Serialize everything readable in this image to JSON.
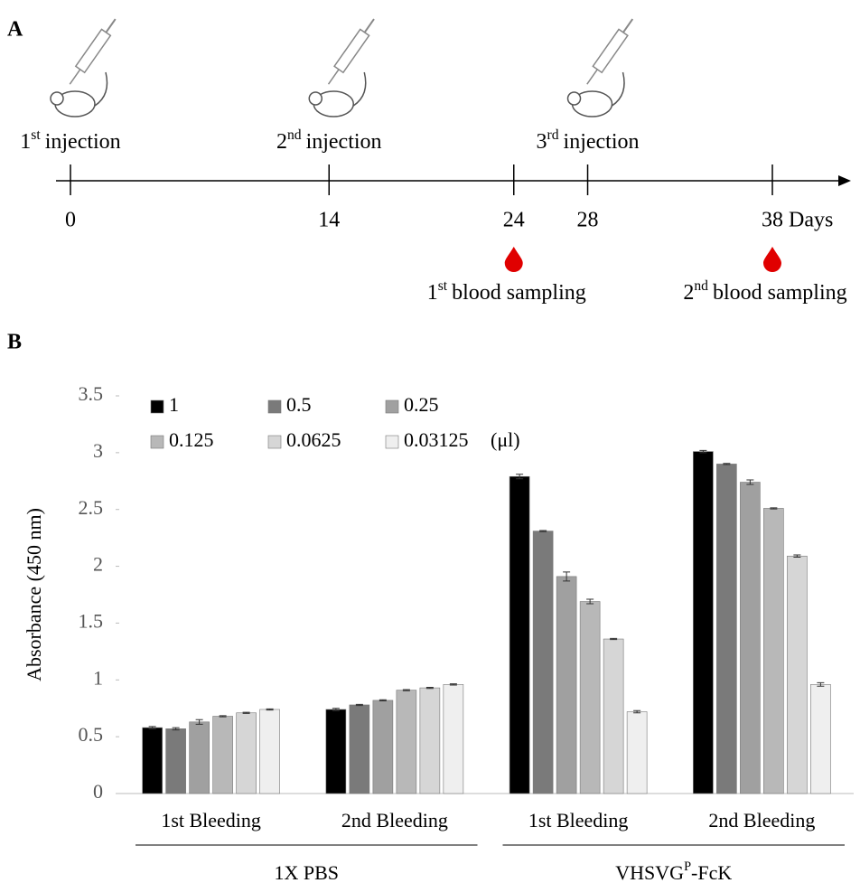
{
  "panel_a": {
    "label": "A",
    "injections": [
      {
        "pre": "1",
        "sup": "st",
        "post": "injection",
        "day": 0
      },
      {
        "pre": "2",
        "sup": "nd",
        "post": "injection",
        "day": 14
      },
      {
        "pre": "3",
        "sup": "rd",
        "post": "injection",
        "day": 28
      }
    ],
    "days": [
      0,
      14,
      24,
      28,
      38
    ],
    "xlim": [
      0,
      38
    ],
    "unit": "Days",
    "samplings": [
      {
        "pre": "1",
        "sup": "st",
        "post": "blood sampling",
        "day": 24
      },
      {
        "pre": "2",
        "sup": "nd",
        "post": "blood sampling",
        "day": 38
      }
    ]
  },
  "chart_data": {
    "type": "bar",
    "label": "B",
    "ylabel": "Absorbance (450 nm)",
    "categories": [
      "1st Bleeding",
      "2nd Bleeding",
      "1st Bleeding",
      "2nd Bleeding"
    ],
    "groups": [
      "1X PBS",
      {
        "pre": "VHSVG",
        "sup": "P",
        "post": "-FcK"
      }
    ],
    "legend_unit": "(μl)",
    "series": [
      {
        "name": "1",
        "color": "#000000",
        "values": [
          0.58,
          0.74,
          2.79,
          3.01
        ],
        "errors": [
          0.01,
          0.01,
          0.02,
          0.01
        ]
      },
      {
        "name": "0.5",
        "color": "#7a7a7a",
        "values": [
          0.57,
          0.78,
          2.31,
          2.9
        ],
        "errors": [
          0.01,
          0.005,
          0.005,
          0.005
        ]
      },
      {
        "name": "0.25",
        "color": "#a0a0a0",
        "values": [
          0.63,
          0.82,
          1.91,
          2.74
        ],
        "errors": [
          0.02,
          0.005,
          0.04,
          0.02
        ]
      },
      {
        "name": "0.125",
        "color": "#b8b8b8",
        "values": [
          0.68,
          0.91,
          1.69,
          2.51
        ],
        "errors": [
          0.005,
          0.005,
          0.02,
          0.005
        ]
      },
      {
        "name": "0.0625",
        "color": "#d6d6d6",
        "values": [
          0.71,
          0.93,
          1.36,
          2.09
        ],
        "errors": [
          0.005,
          0.005,
          0.005,
          0.01
        ]
      },
      {
        "name": "0.03125",
        "color": "#efefef",
        "values": [
          0.74,
          0.96,
          0.72,
          0.96
        ],
        "errors": [
          0.005,
          0.005,
          0.01,
          0.015
        ]
      }
    ],
    "ylim": [
      0,
      3.5
    ],
    "yticks": [
      0,
      0.5,
      1,
      1.5,
      2,
      2.5,
      3,
      3.5
    ]
  }
}
